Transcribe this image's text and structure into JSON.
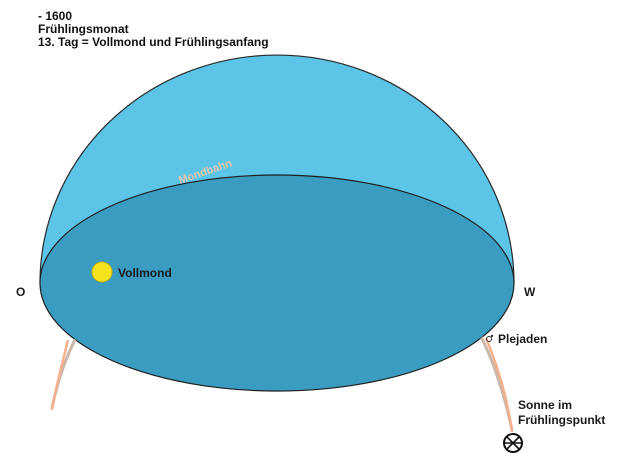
{
  "header": {
    "year": "- 1600",
    "month": "Frühlingsmonat",
    "day_line": "13. Tag = Vollmond und Frühlingsanfang"
  },
  "directions": {
    "east": "O",
    "west": "W"
  },
  "labels": {
    "path": "Mondbahn",
    "full_moon": "Vollmond",
    "pleiades": "Plejaden",
    "sun_line1": "Sonne im",
    "sun_line2": "Frühlingspunkt"
  },
  "colors": {
    "sky_dome": "#5cc4e6",
    "horizon_disc": "#3b9cc1",
    "horizon_edge": "#222222",
    "path_above": "#c9b7aa",
    "path_below": "#f5b08c",
    "full_moon": "#f5e11c",
    "sun_symbol": "#111111"
  },
  "icons": {
    "full_moon": "full-moon-icon",
    "pleiades": "star-cluster-icon",
    "sun": "sun-symbol-icon"
  }
}
